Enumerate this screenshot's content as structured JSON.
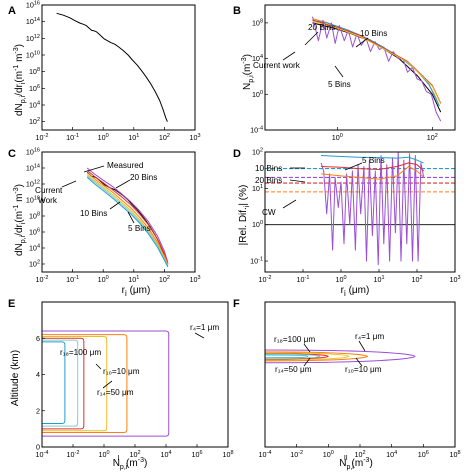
{
  "chart_data": [
    {
      "panel": "A",
      "type": "line",
      "ylabel": "dN_p,i/dr_i (m^-1 m^-3)",
      "xscale": "log",
      "yscale": "log",
      "xlim": [
        0.01,
        1000
      ],
      "ylim": [
        10,
        1e+16
      ],
      "xticks": [
        "10-2",
        "10-1",
        "100",
        "101",
        "102",
        "103"
      ],
      "yticks": [
        "102",
        "104",
        "106",
        "108",
        "1010",
        "1012",
        "1014",
        "1016"
      ],
      "series": [
        {
          "color": "#000000",
          "x": [
            0.03,
            0.05,
            0.08,
            0.12,
            0.17,
            0.22,
            0.28,
            0.35,
            0.42,
            0.5,
            0.6,
            0.75,
            0.9,
            1.1,
            1.4,
            1.8,
            2.4,
            3.2,
            4.5,
            6.5,
            9,
            13,
            18,
            25,
            35,
            50,
            70,
            90,
            110,
            125
          ],
          "y": [
            1000000000000000.0,
            600000000000000.0,
            300000000000000.0,
            130000000000000.0,
            70000000000000.0,
            50000000000000.0,
            34000000000000.0,
            16000000000000.0,
            9000000000000.0,
            8000000000000.0,
            6000000000000.0,
            3000000000000.0,
            1600000000000.0,
            800000000000.0,
            500000000000.0,
            300000000000.0,
            200000000000.0,
            90000000000.0,
            35000000000.0,
            10000000000.0,
            2500000000.0,
            600000000.0,
            130000000.0,
            25000000.0,
            4000000.0,
            400000.0,
            35000.0,
            3000.0,
            300,
            100
          ]
        }
      ]
    },
    {
      "panel": "B",
      "type": "line",
      "ylabel": "N_p,i (m^-3)",
      "xscale": "log",
      "yscale": "log",
      "xlim": [
        0.03,
        300
      ],
      "ylim": [
        0.0001,
        10000000000.0
      ],
      "xticks": [
        "100",
        "102"
      ],
      "yticks": [
        "10-4",
        "100",
        "104",
        "108"
      ],
      "annotations": [
        "20 Bins",
        "10 Bins",
        "Current work",
        "5 Bins"
      ],
      "series": [
        {
          "name": "Current work",
          "color": "#000000",
          "x": [
            0.3,
            0.5,
            1,
            2,
            5,
            10,
            20,
            50,
            100,
            150
          ],
          "y": [
            100000000.0,
            50000000.0,
            20000000.0,
            6000000.0,
            900000.0,
            100000.0,
            10000.0,
            100,
            1,
            0.01
          ]
        },
        {
          "name": "20 Bins",
          "color": "#ff7f0e",
          "x": [
            0.3,
            0.45,
            0.6,
            0.8,
            1,
            1.3,
            1.7,
            2.2,
            2.9,
            3.8,
            5,
            6.5,
            8.5,
            11,
            15,
            20,
            27,
            36,
            48,
            64,
            85,
            110,
            140
          ],
          "y": [
            300000000.0,
            160000000.0,
            110000000.0,
            60000000.0,
            40000000.0,
            25000000.0,
            15000000.0,
            8000000.0,
            4500000.0,
            2200000.0,
            1200000.0,
            500000.0,
            240000.0,
            90000.0,
            40000.0,
            15000.0,
            5000.0,
            1600.0,
            400,
            80,
            12,
            1,
            0.05
          ]
        },
        {
          "name": "10 Bins",
          "color": "#1f9fd0",
          "x": [
            0.3,
            0.6,
            1,
            1.7,
            2.9,
            5,
            8.5,
            15,
            27,
            48,
            85,
            140
          ],
          "y": [
            200000000.0,
            100000000.0,
            40000000.0,
            15000000.0,
            4500000.0,
            1200000.0,
            240000.0,
            40000.0,
            5000.0,
            400,
            12,
            0.05
          ]
        },
        {
          "name": "5 Bins",
          "color": "#9b4fd6",
          "x": [
            0.3,
            0.4,
            0.5,
            0.6,
            0.75,
            0.9,
            1.1,
            1.4,
            1.7,
            2.1,
            2.6,
            3.2,
            4,
            5,
            6.2,
            7.7,
            9.5,
            12,
            15,
            19,
            24,
            30,
            38,
            48,
            60,
            75,
            95,
            120,
            150
          ],
          "y": [
            500000000.0,
            1000000.0,
            200000000.0,
            2000000.0,
            100000000.0,
            500000.0,
            50000000.0,
            1000000.0,
            15000000.0,
            200000.0,
            6000000.0,
            300000.0,
            2000000.0,
            60000.0,
            800000.0,
            100000.0,
            200000.0,
            5000.0,
            60000.0,
            10000.0,
            10000.0,
            300,
            1000.0,
            50,
            30,
            2,
            1,
            0.01,
            0.001
          ]
        },
        {
          "name": "",
          "color": "#e03030",
          "x": [
            0.3,
            1,
            3,
            10,
            30,
            100,
            150
          ],
          "y": [
            200000000.0,
            30000000.0,
            4000000.0,
            120000.0,
            5000.0,
            10,
            0.1
          ]
        },
        {
          "name": "",
          "color": "#e8c020",
          "x": [
            0.3,
            1,
            3,
            10,
            30,
            100,
            150
          ],
          "y": [
            150000000.0,
            25000000.0,
            3000000.0,
            100000.0,
            4000.0,
            8,
            0.08
          ]
        }
      ]
    },
    {
      "panel": "C",
      "type": "line",
      "ylabel": "dN_p,i/dr_i (m^-1 m^-3)",
      "xlabel": "r_i (µm)",
      "xscale": "log",
      "yscale": "log",
      "xlim": [
        0.01,
        1000
      ],
      "ylim": [
        10,
        1e+16
      ],
      "xticks": [
        "10-2",
        "10-1",
        "100",
        "101",
        "102",
        "103"
      ],
      "yticks": [
        "102",
        "104",
        "106",
        "108",
        "1010",
        "1012",
        "1014",
        "1016"
      ],
      "annotations": [
        "Measured",
        "Current Work",
        "20 Bins",
        "10 Bins",
        "5 Bins"
      ],
      "series": [
        {
          "name": "Measured",
          "color": "#000000",
          "x": [
            0.3,
            0.42,
            0.5,
            0.6,
            0.75,
            0.9,
            1.1,
            1.4,
            1.8,
            2.4,
            3.2,
            4.5,
            6.5,
            9,
            13,
            18,
            25,
            35,
            50,
            70,
            90,
            110,
            125
          ],
          "y": [
            30000000000000.0,
            9000000000000.0,
            8000000000000.0,
            6000000000000.0,
            3000000000000.0,
            1600000000000.0,
            800000000000.0,
            500000000000.0,
            300000000000.0,
            200000000000.0,
            90000000000.0,
            35000000000.0,
            10000000000.0,
            2500000000.0,
            600000000.0,
            130000000.0,
            25000000.0,
            4000000.0,
            400000.0,
            35000.0,
            3000.0,
            300,
            100
          ]
        },
        {
          "name": "",
          "color": "#9b4fd6",
          "x": [
            0.3,
            0.5,
            1,
            2,
            4,
            8,
            15,
            30,
            60,
            100,
            130
          ],
          "y": [
            100000000000000.0,
            20000000000000.0,
            3000000000000.0,
            500000000000.0,
            60000000000.0,
            6000000000.0,
            500000000.0,
            20000000.0,
            300000.0,
            4000.0,
            150
          ]
        },
        {
          "name": "",
          "color": "#e03030",
          "x": [
            0.3,
            0.5,
            1,
            2,
            4,
            8,
            15,
            30,
            60,
            100,
            130
          ],
          "y": [
            50000000000000.0,
            10000000000000.0,
            1500000000000.0,
            200000000000.0,
            25000000000.0,
            2500000000.0,
            200000000.0,
            8000000.0,
            120000.0,
            2000.0,
            100
          ]
        },
        {
          "name": "",
          "color": "#ff7f0e",
          "x": [
            0.3,
            0.5,
            1,
            2,
            4,
            8,
            15,
            30,
            60,
            100,
            130
          ],
          "y": [
            25000000000000.0,
            5000000000000.0,
            700000000000.0,
            100000000000.0,
            10000000000.0,
            1000000000.0,
            80000000.0,
            3000000.0,
            50000.0,
            1000.0,
            80
          ]
        },
        {
          "name": "",
          "color": "#e8c020",
          "x": [
            0.3,
            0.5,
            1,
            2,
            4,
            8,
            15,
            30,
            60,
            100,
            130
          ],
          "y": [
            15000000000000.0,
            3000000000000.0,
            400000000000.0,
            50000000000.0,
            5000000000.0,
            500000000.0,
            40000000.0,
            1500000.0,
            30000.0,
            600,
            60
          ]
        },
        {
          "name": "",
          "color": "#7fd0d0",
          "x": [
            0.3,
            0.5,
            1,
            2,
            4,
            8,
            15,
            30,
            60,
            100,
            130
          ],
          "y": [
            10000000000000.0,
            2000000000000.0,
            250000000000.0,
            30000000000.0,
            3000000000.0,
            300000000.0,
            25000000.0,
            1000000.0,
            20000.0,
            400,
            50
          ]
        },
        {
          "name": "",
          "color": "#1f9fd0",
          "x": [
            0.3,
            0.5,
            1,
            2,
            4,
            8,
            15,
            30,
            60,
            100,
            130
          ],
          "y": [
            7000000000000.0,
            1200000000000.0,
            150000000000.0,
            18000000000.0,
            1800000000.0,
            180000000.0,
            15000000.0,
            600000.0,
            12000.0,
            300,
            40
          ]
        }
      ]
    },
    {
      "panel": "D",
      "type": "line",
      "ylabel": "|Rel. Dif.| (%)",
      "xlabel": "r_i (µm)",
      "xscale": "log",
      "yscale": "log",
      "xlim": [
        0.01,
        1000
      ],
      "ylim": [
        0.05,
        100
      ],
      "xticks": [
        "10-2",
        "10-1",
        "100",
        "101",
        "102",
        "103"
      ],
      "yticks": [
        "10-1",
        "100",
        "101",
        "102"
      ],
      "annotations": [
        "10 Bins",
        "5 Bins",
        "20 Bins",
        "CW"
      ],
      "hlines": [
        {
          "y": 1,
          "color": "#000000"
        },
        {
          "y": 35,
          "color": "#1f9fd0"
        },
        {
          "y": 20,
          "color": "#9b4fd6"
        },
        {
          "y": 14,
          "color": "#e03030"
        },
        {
          "y": 8,
          "color": "#ff7f0e"
        }
      ],
      "series": [
        {
          "name": "CW",
          "color": "#9b4fd6",
          "x": [
            0.3,
            0.35,
            0.42,
            0.5,
            0.6,
            0.7,
            0.85,
            1,
            1.2,
            1.4,
            1.7,
            2,
            2.4,
            2.8,
            3.3,
            4,
            4.7,
            5.6,
            6.7,
            8,
            9.5,
            11.3,
            13.4,
            16,
            19,
            22.6,
            27,
            32,
            38,
            45,
            54,
            64,
            76,
            90,
            107,
            127,
            150
          ],
          "y": [
            50,
            30,
            2,
            25,
            0.2,
            20,
            3,
            15,
            0.3,
            25,
            1,
            30,
            0.2,
            45,
            2,
            40,
            0.1,
            60,
            0.5,
            30,
            0.08,
            80,
            0.3,
            45,
            0.1,
            70,
            0.6,
            100,
            0.1,
            60,
            0.3,
            90,
            0.1,
            80,
            0.1,
            50,
            20
          ]
        },
        {
          "name": "10 Bins",
          "color": "#1f9fd0",
          "x": [
            0.3,
            1,
            3,
            10,
            30,
            60,
            100,
            150
          ],
          "y": [
            80,
            75,
            72,
            70,
            68,
            72,
            60,
            50
          ]
        },
        {
          "name": "20 Bins",
          "color": "#e03030",
          "x": [
            0.3,
            1,
            3,
            10,
            30,
            60,
            100,
            150
          ],
          "y": [
            40,
            38,
            35,
            33,
            40,
            50,
            45,
            30
          ]
        },
        {
          "name": "5 Bins",
          "color": "#ff7f0e",
          "x": [
            0.3,
            1,
            3,
            10,
            30,
            60,
            100,
            150
          ],
          "y": [
            25,
            22,
            20,
            18,
            22,
            40,
            30,
            20
          ]
        }
      ]
    },
    {
      "panel": "E",
      "type": "line",
      "ylabel": "Altitude (km)",
      "xlabel": "N_p,i^I (m^-3)",
      "xscale": "log",
      "xlim": [
        0.0001,
        100000000.0
      ],
      "ylim": [
        0,
        8
      ],
      "xticks": [
        "10-4",
        "10-2",
        "100",
        "102",
        "104",
        "106",
        "108"
      ],
      "yticks": [
        "0",
        "2",
        "4",
        "6"
      ],
      "annotations": [
        "r18=100 µm",
        "r4=1 µm",
        "r10=10 µm",
        "r14=50 µm"
      ],
      "series": [
        {
          "name": "r18=100 µm",
          "color": "#1f9fd0",
          "xmax": 0.003,
          "y_bottom": 1.3,
          "y_top": 5.8
        },
        {
          "name": "r14=50 µm",
          "color": "#e03030",
          "xmax": 0.05,
          "y_bottom": 1.0,
          "y_top": 6.0
        },
        {
          "name": "r10=10 µm",
          "color": "#ff7f0e",
          "xmax": 30,
          "y_bottom": 0.8,
          "y_top": 6.2
        },
        {
          "name": "r4=1 µm",
          "color": "#9b4fd6",
          "xmax": 15000,
          "y_bottom": 0.6,
          "y_top": 6.4
        },
        {
          "name": "",
          "color": "#7fd0d0",
          "xmax": 0.02,
          "y_bottom": 1.15,
          "y_top": 5.9
        },
        {
          "name": "",
          "color": "#e8c020",
          "xmax": 1.5,
          "y_bottom": 0.9,
          "y_top": 6.1
        }
      ]
    },
    {
      "panel": "F",
      "type": "line",
      "ylabel": "",
      "xlabel": "N_p,i^II (m^-3)",
      "xscale": "log",
      "xlim": [
        0.0001,
        100000000.0
      ],
      "ylim": [
        0,
        8
      ],
      "xticks": [
        "10-4",
        "10-2",
        "100",
        "102",
        "104",
        "106",
        "108"
      ],
      "annotations": [
        "r18=100 µm",
        "r4=1 µm",
        "r14=50 µm",
        "r10=10 µm"
      ],
      "series": [
        {
          "name": "r18=100 µm",
          "color": "#1f9fd0",
          "xmax": 0.05,
          "ylo": 4.92,
          "yhi": 5.08
        },
        {
          "name": "r14=50 µm",
          "color": "#e03030",
          "xmax": 1,
          "ylo": 4.85,
          "yhi": 5.15
        },
        {
          "name": "r10=10 µm",
          "color": "#ff7f0e",
          "xmax": 300,
          "ylo": 4.75,
          "yhi": 5.25
        },
        {
          "name": "r4=1 µm",
          "color": "#9b4fd6",
          "xmax": 300000,
          "ylo": 4.65,
          "yhi": 5.35
        },
        {
          "name": "",
          "color": "#7fd0d0",
          "xmax": 0.3,
          "ylo": 4.88,
          "yhi": 5.12
        },
        {
          "name": "",
          "color": "#e8c020",
          "xmax": 20,
          "ylo": 4.8,
          "yhi": 5.2
        }
      ]
    }
  ],
  "panel_labels": [
    "A",
    "B",
    "C",
    "D",
    "E",
    "F"
  ],
  "annotations": {
    "b_20bins": "20 Bins",
    "b_10bins": "10 Bins",
    "b_current": "Current work",
    "b_5bins": "5 Bins",
    "c_measured": "Measured",
    "c_current1": "Current",
    "c_current2": "Work",
    "c_20bins": "20 Bins",
    "c_10bins": "10 Bins",
    "c_5bins": "5 Bins",
    "d_10bins": "10 Bins",
    "d_5bins": "5 Bins",
    "d_20bins": "20 Bins",
    "d_cw": "CW",
    "e_r18": "r₁₈=100 μm",
    "e_r4": "r₄=1 μm",
    "e_r10": "r₁₀=10 μm",
    "e_r14": "r₁₄=50 μm",
    "f_r18": "r₁₈=100 μm",
    "f_r4": "r₄=1 μm",
    "f_r14": "r₁₄=50 μm",
    "f_r10": "r₁₀=10 μm"
  },
  "axis_labels": {
    "a_y": "dN",
    "a_y_sub": "p,i",
    "a_y_mid": "/dr",
    "a_y_sub2": "i",
    "a_y_unit": "(m",
    "a_y_unit_sup": "-1",
    "a_y_unit2": " m",
    "a_y_unit_sup2": "-3",
    "a_y_end": ")",
    "b_y": "N",
    "b_y_sub": "p,i",
    "b_y_unit": "(m",
    "b_y_unit_sup": "-3",
    "b_y_end": ")",
    "c_y": "dN",
    "c_y_sub": "p,i",
    "c_y_mid": "/dr",
    "c_y_sub2": "i",
    "c_y_unit": "(m",
    "c_y_unit_sup": "-1",
    "c_y_unit2": " m",
    "c_y_unit_sup2": "-3",
    "c_y_end": ")",
    "c_x": "r",
    "c_x_sub": "i",
    "c_x_unit": " (μm)",
    "d_y": "|Rel. Dif.",
    "d_y_sub": "i",
    "d_y_unit": "| (%)",
    "d_x": "r",
    "d_x_sub": "i",
    "d_x_unit": " (μm)",
    "e_y": "Altitude (km)",
    "e_x": "N",
    "e_x_sub": "p,i",
    "e_x_sup": "I",
    "e_x_unit": " (m",
    "e_x_unit_sup": "-3",
    "e_x_end": ")",
    "f_x": "N",
    "f_x_sub": "p,i",
    "f_x_sup": "II",
    "f_x_unit": " (m",
    "f_x_unit_sup": "-3",
    "f_x_end": ")"
  }
}
